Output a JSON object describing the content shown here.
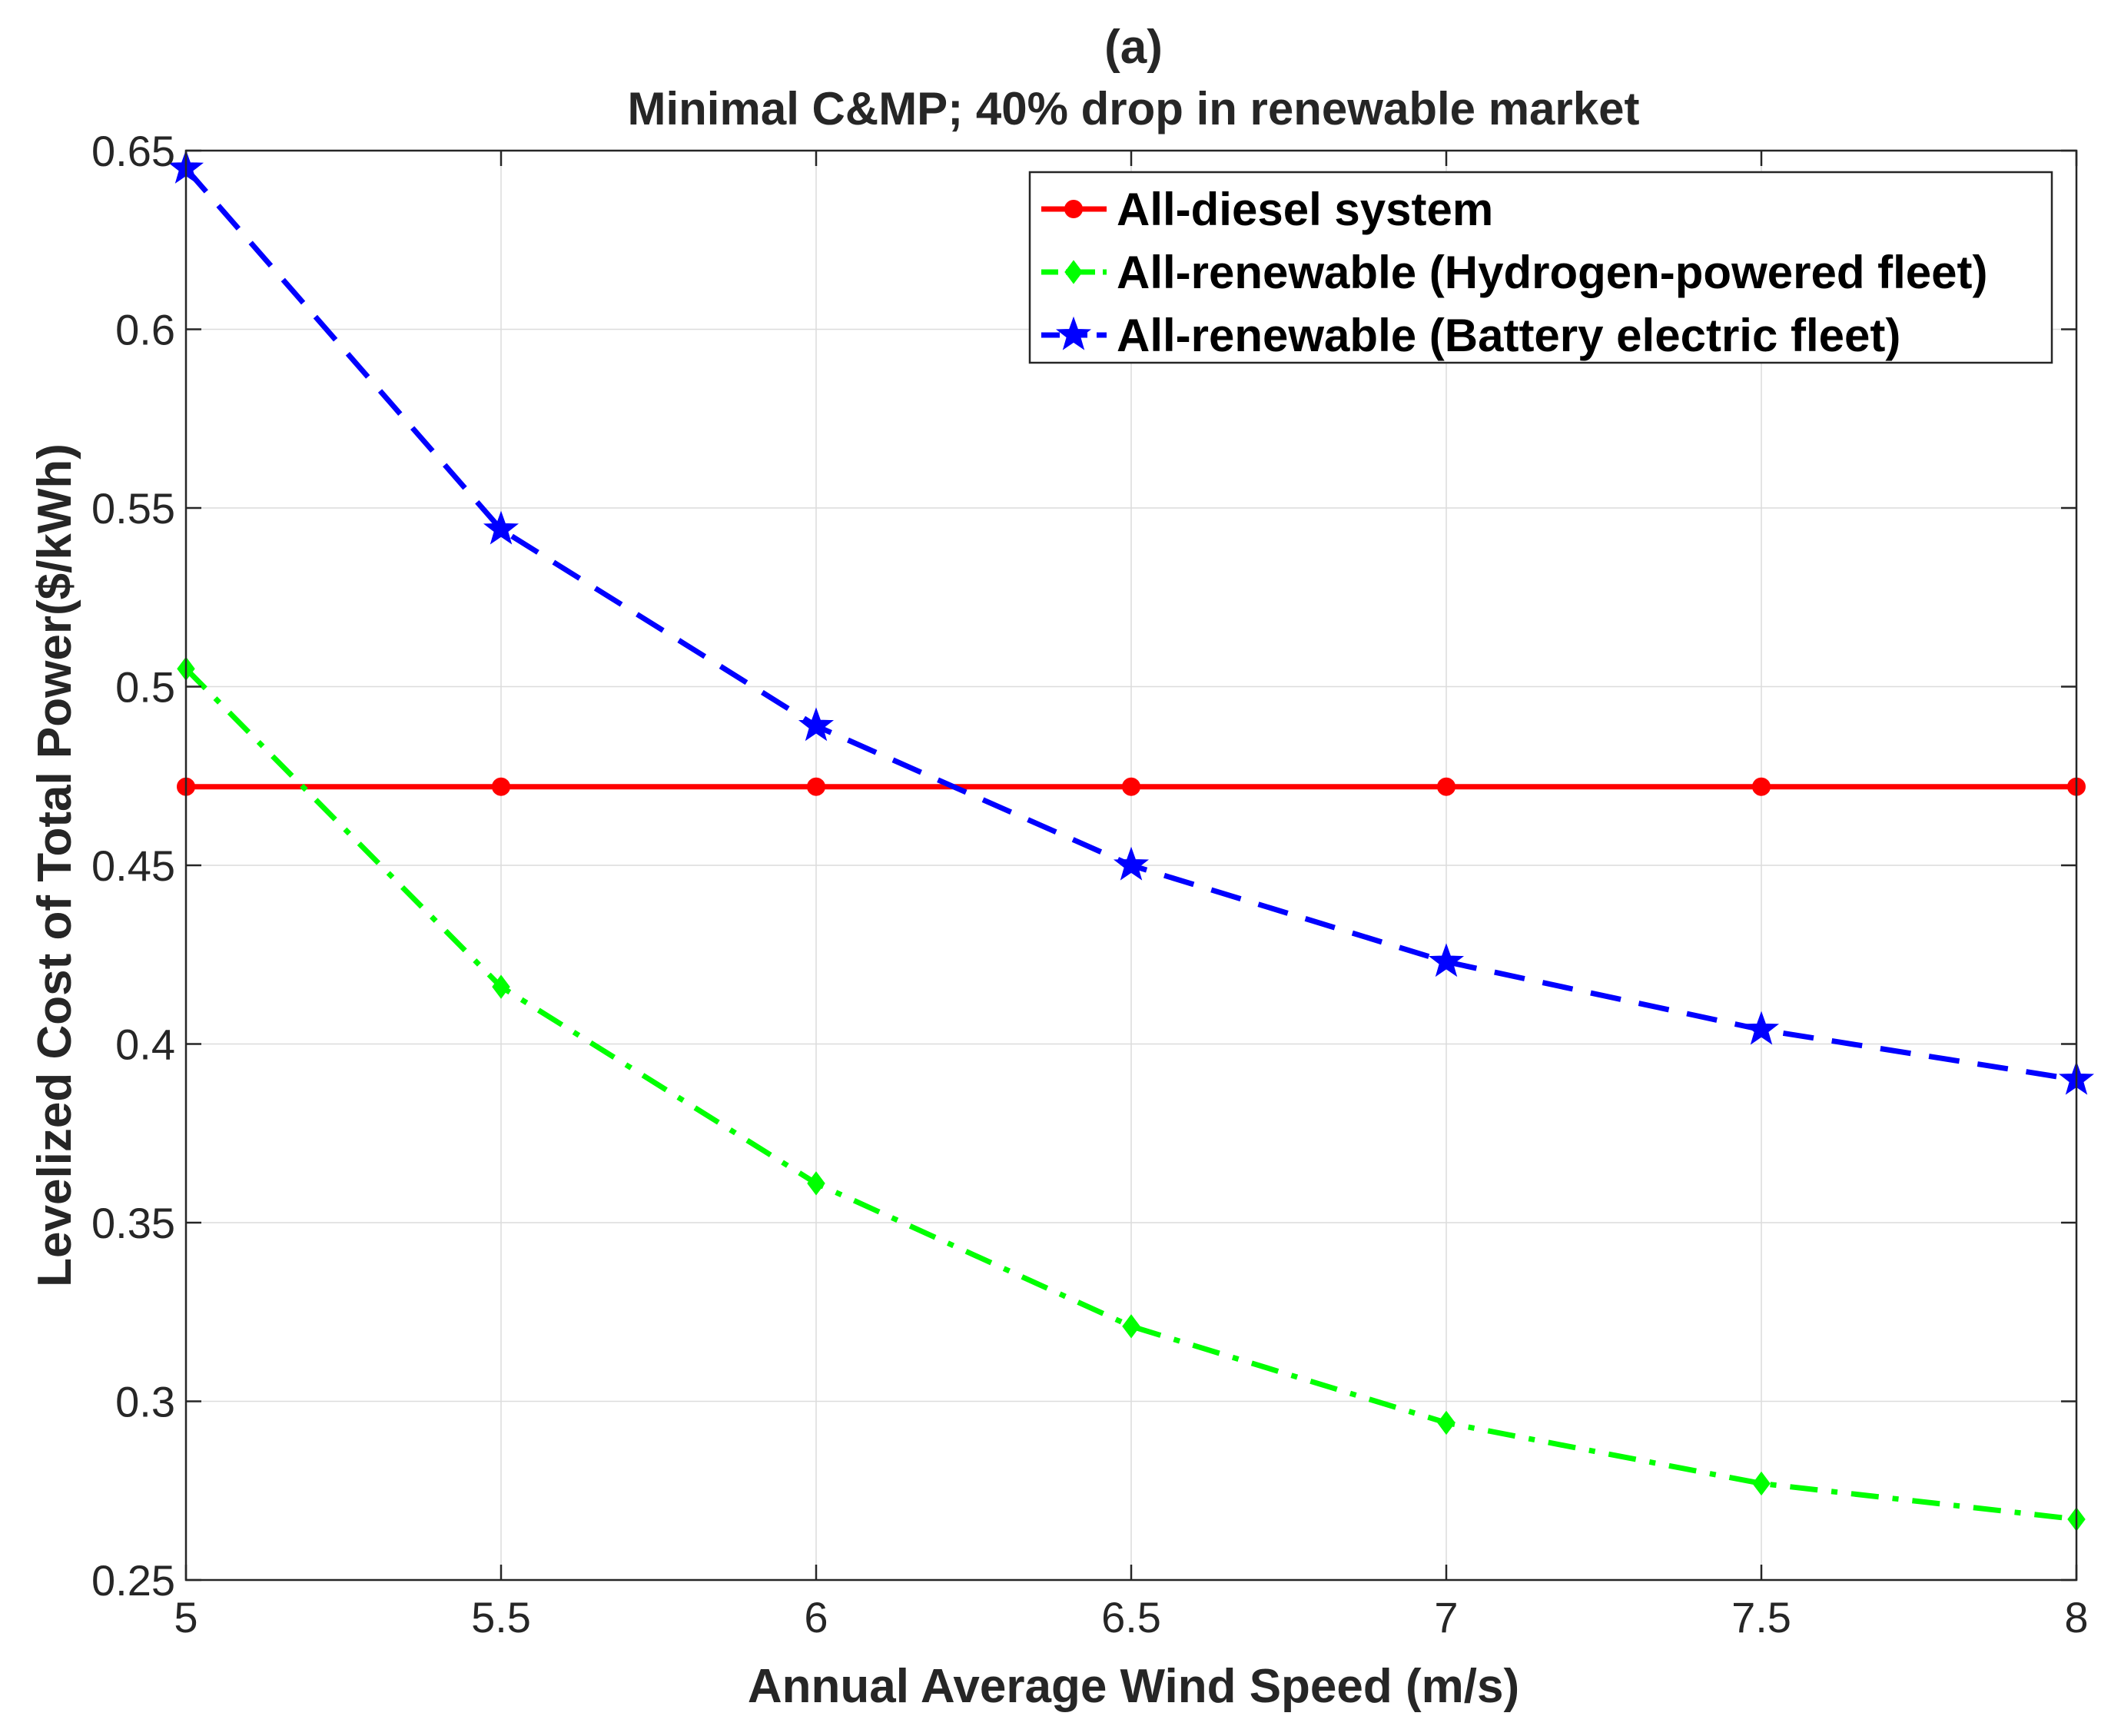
{
  "chart_data": {
    "type": "line",
    "title": "(a)",
    "subtitle": "Minimal C&MP; 40% drop in renewable market",
    "xlabel": "Annual Average Wind Speed (m/s)",
    "ylabel": "Levelized Cost of Total Power($/kWh)",
    "x": [
      5,
      5.5,
      6,
      6.5,
      7,
      7.5,
      8
    ],
    "xlim": [
      5,
      8
    ],
    "ylim": [
      0.25,
      0.65
    ],
    "xticks": [
      "5",
      "5.5",
      "6",
      "6.5",
      "7",
      "7.5",
      "8"
    ],
    "yticks": [
      "0.25",
      "0.3",
      "0.35",
      "0.4",
      "0.45",
      "0.5",
      "0.55",
      "0.6",
      "0.65"
    ],
    "grid": true,
    "legend_position": "top-right",
    "series": [
      {
        "name": "All-diesel system",
        "values": [
          0.472,
          0.472,
          0.472,
          0.472,
          0.472,
          0.472,
          0.472
        ],
        "color": "#ff0000",
        "line_style": "solid",
        "marker": "circle"
      },
      {
        "name": "All-renewable (Hydrogen-powered fleet)",
        "values": [
          0.505,
          0.416,
          0.361,
          0.321,
          0.294,
          0.277,
          0.267
        ],
        "color": "#00ff00",
        "line_style": "dash-dot",
        "marker": "diamond"
      },
      {
        "name": "All-renewable (Battery electric fleet)",
        "values": [
          0.645,
          0.544,
          0.489,
          0.45,
          0.423,
          0.404,
          0.39
        ],
        "color": "#0000ff",
        "line_style": "dashed",
        "marker": "star"
      }
    ]
  }
}
